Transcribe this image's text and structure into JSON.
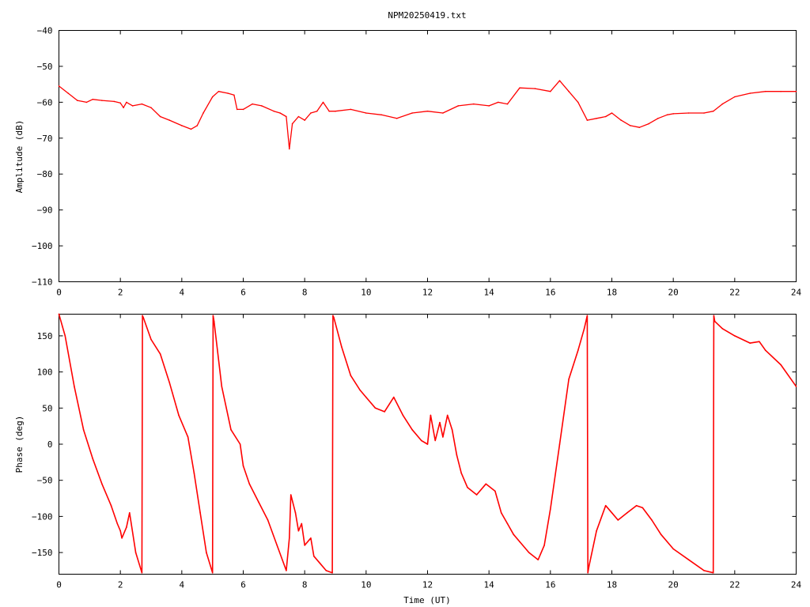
{
  "chart_data": [
    {
      "type": "line",
      "title": "NPM20250419.txt",
      "xlabel": "",
      "ylabel": "Amplitude (dB)",
      "xlim": [
        0,
        24
      ],
      "ylim": [
        -110,
        -40
      ],
      "xticks": [
        "0",
        "2",
        "4",
        "6",
        "8",
        "10",
        "12",
        "14",
        "16",
        "18",
        "20",
        "22",
        "24"
      ],
      "yticks": [
        "-40",
        "-50",
        "-60",
        "-70",
        "-80",
        "-90",
        "-100",
        "-110"
      ],
      "grid": false,
      "legend": "none",
      "series": [
        {
          "color": "#ff0000",
          "x": [
            0,
            0.3,
            0.6,
            0.9,
            1.1,
            1.4,
            1.8,
            2.0,
            2.1,
            2.2,
            2.4,
            2.7,
            3.0,
            3.3,
            3.6,
            4.0,
            4.3,
            4.5,
            4.7,
            5.0,
            5.2,
            5.5,
            5.7,
            5.8,
            6.0,
            6.3,
            6.6,
            7.0,
            7.2,
            7.4,
            7.5,
            7.6,
            7.8,
            8.0,
            8.2,
            8.4,
            8.6,
            8.8,
            9.0,
            9.5,
            10.0,
            10.5,
            11.0,
            11.5,
            12.0,
            12.5,
            13.0,
            13.5,
            14.0,
            14.3,
            14.6,
            15.0,
            15.5,
            16.0,
            16.3,
            16.6,
            16.9,
            17.2,
            17.5,
            17.8,
            18.0,
            18.3,
            18.6,
            18.9,
            19.2,
            19.5,
            19.8,
            20.0,
            20.5,
            21.0,
            21.3,
            21.6,
            22.0,
            22.5,
            23.0,
            23.5,
            24.0
          ],
          "values": [
            -55.5,
            -57.5,
            -59.5,
            -60.0,
            -59.2,
            -59.5,
            -59.8,
            -60.2,
            -61.5,
            -60.0,
            -61.0,
            -60.5,
            -61.5,
            -64.0,
            -65.0,
            -66.5,
            -67.5,
            -66.5,
            -63.0,
            -58.5,
            -57.0,
            -57.5,
            -58.0,
            -62.0,
            -62.0,
            -60.5,
            -61.0,
            -62.5,
            -63.0,
            -64.0,
            -73.0,
            -66.0,
            -64.0,
            -65.0,
            -63.0,
            -62.5,
            -60.0,
            -62.5,
            -62.5,
            -62.0,
            -63.0,
            -63.5,
            -64.5,
            -63.0,
            -62.5,
            -63.0,
            -61.0,
            -60.5,
            -61.0,
            -60.0,
            -60.5,
            -56.0,
            -56.2,
            -57.0,
            -54.0,
            -57.0,
            -60.0,
            -65.0,
            -64.5,
            -64.0,
            -63.0,
            -65.0,
            -66.5,
            -67.0,
            -66.0,
            -64.5,
            -63.5,
            -63.2,
            -63.0,
            -63.0,
            -62.5,
            -60.5,
            -58.5,
            -57.5,
            -57.0,
            -57.0,
            -57.0
          ]
        }
      ]
    },
    {
      "type": "line",
      "title": "",
      "xlabel": "Time (UT)",
      "ylabel": "Phase (deg)",
      "xlim": [
        0,
        24
      ],
      "ylim": [
        -180,
        180
      ],
      "xticks": [
        "0",
        "2",
        "4",
        "6",
        "8",
        "10",
        "12",
        "14",
        "16",
        "18",
        "20",
        "22",
        "24"
      ],
      "yticks": [
        "150",
        "100",
        "50",
        "0",
        "-50",
        "-100",
        "-150"
      ],
      "grid": false,
      "legend": "none",
      "series": [
        {
          "color": "#ff0000",
          "x": [
            0,
            0.2,
            0.5,
            0.8,
            1.1,
            1.4,
            1.7,
            1.9,
            2.0,
            2.05,
            2.2,
            2.3,
            2.5,
            2.7,
            2.72,
            2.75,
            3.0,
            3.3,
            3.6,
            3.9,
            4.2,
            4.4,
            4.6,
            4.8,
            5.0,
            5.02,
            5.05,
            5.3,
            5.6,
            5.9,
            6.0,
            6.2,
            6.5,
            6.8,
            7.1,
            7.4,
            7.5,
            7.55,
            7.7,
            7.8,
            7.9,
            8.0,
            8.2,
            8.3,
            8.5,
            8.7,
            8.9,
            8.92,
            8.95,
            9.2,
            9.5,
            9.8,
            10.0,
            10.3,
            10.6,
            10.9,
            11.2,
            11.5,
            11.8,
            12.0,
            12.1,
            12.25,
            12.4,
            12.5,
            12.65,
            12.8,
            12.95,
            13.1,
            13.3,
            13.6,
            13.9,
            14.2,
            14.4,
            14.6,
            14.8,
            15.0,
            15.3,
            15.6,
            15.8,
            16.0,
            16.3,
            16.6,
            16.9,
            17.1,
            17.2,
            17.22,
            17.25,
            17.5,
            17.8,
            18.0,
            18.2,
            18.5,
            18.8,
            19.0,
            19.3,
            19.6,
            20.0,
            20.5,
            21.0,
            21.3,
            21.32,
            21.35,
            21.6,
            22.0,
            22.5,
            22.8,
            23.0,
            23.5,
            24.0
          ],
          "values": [
            180,
            150,
            80,
            20,
            -20,
            -55,
            -85,
            -110,
            -120,
            -130,
            -115,
            -95,
            -150,
            -178,
            178,
            175,
            145,
            125,
            85,
            40,
            10,
            -40,
            -95,
            -150,
            -178,
            178,
            170,
            80,
            20,
            0,
            -30,
            -55,
            -80,
            -105,
            -140,
            -175,
            -130,
            -70,
            -95,
            -120,
            -110,
            -140,
            -130,
            -155,
            -165,
            -175,
            -178,
            178,
            175,
            135,
            95,
            75,
            65,
            50,
            45,
            65,
            40,
            20,
            5,
            0,
            40,
            5,
            30,
            10,
            40,
            20,
            -15,
            -40,
            -60,
            -70,
            -55,
            -65,
            -95,
            -110,
            -125,
            -135,
            -150,
            -160,
            -140,
            -90,
            0,
            90,
            130,
            160,
            178,
            -178,
            -170,
            -120,
            -85,
            -95,
            -105,
            -95,
            -85,
            -88,
            -105,
            -125,
            -145,
            -160,
            -175,
            -178,
            178,
            170,
            160,
            150,
            140,
            142,
            130,
            110,
            80
          ]
        }
      ]
    }
  ]
}
